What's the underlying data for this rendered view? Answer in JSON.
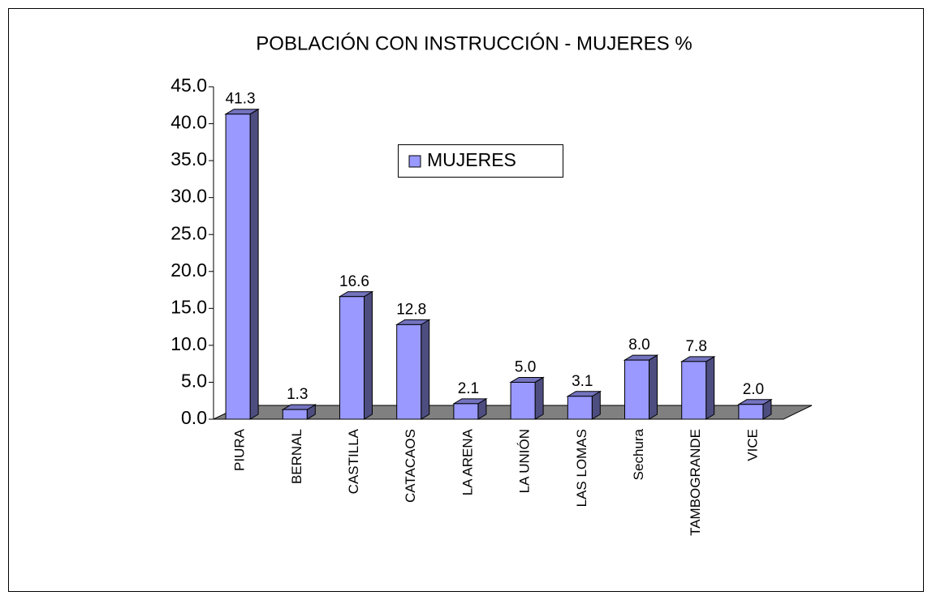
{
  "chart_data": {
    "type": "bar",
    "title": "POBLACIÓN CON INSTRUCCIÓN - MUJERES %",
    "categories": [
      "PIURA",
      "BERNAL",
      "CASTILLA",
      "CATACAOS",
      "LA ARENA",
      "LA UNIÓN",
      "LAS LOMAS",
      "Sechura",
      "TAMBOGRANDE",
      "VICE"
    ],
    "series": [
      {
        "name": "MUJERES",
        "color": "#9999ff",
        "values": [
          41.3,
          1.3,
          16.6,
          12.8,
          2.1,
          5.0,
          3.1,
          8.0,
          7.8,
          2.0
        ],
        "value_labels": [
          "41.3",
          "1.3",
          "16.6",
          "12.8",
          "2.1",
          "5.0",
          "3.1",
          "8.0",
          "7.8",
          "2.0"
        ]
      }
    ],
    "ylim": [
      0,
      45
    ],
    "yticks": [
      {
        "value": 0,
        "label": "0.0"
      },
      {
        "value": 5,
        "label": "5.0"
      },
      {
        "value": 10,
        "label": "10.0"
      },
      {
        "value": 15,
        "label": "15.0"
      },
      {
        "value": 20,
        "label": "20.0"
      },
      {
        "value": 25,
        "label": "25.0"
      },
      {
        "value": 30,
        "label": "30.0"
      },
      {
        "value": 35,
        "label": "35.0"
      },
      {
        "value": 40,
        "label": "40.0"
      },
      {
        "value": 45,
        "label": "45.0"
      }
    ],
    "legend": "top-center",
    "grid": false
  }
}
